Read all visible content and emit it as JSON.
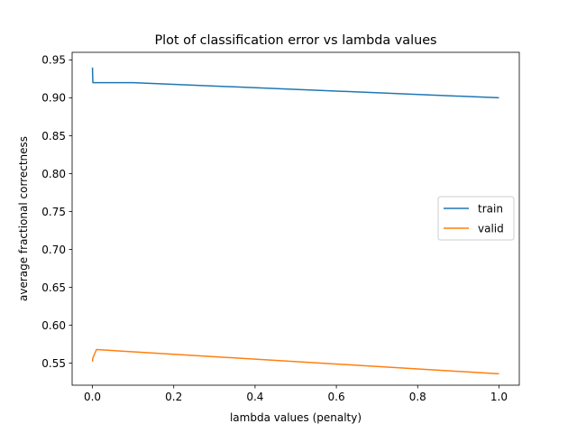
{
  "chart_data": {
    "type": "line",
    "title": "Plot of classification error vs lambda values",
    "xlabel": "lambda values (penalty)",
    "ylabel": "average fractional correctness",
    "xlim": [
      -0.05,
      1.05
    ],
    "ylim": [
      0.521,
      0.96
    ],
    "xticks": [
      0.0,
      0.2,
      0.4,
      0.6,
      0.8,
      1.0
    ],
    "xtick_labels": [
      "0.0",
      "0.2",
      "0.4",
      "0.6",
      "0.8",
      "1.0"
    ],
    "yticks": [
      0.55,
      0.6,
      0.65,
      0.7,
      0.75,
      0.8,
      0.85,
      0.9,
      0.95
    ],
    "ytick_labels": [
      "0.55",
      "0.60",
      "0.65",
      "0.70",
      "0.75",
      "0.80",
      "0.85",
      "0.90",
      "0.95"
    ],
    "grid": false,
    "legend_position": "center-right",
    "series": [
      {
        "name": "train",
        "color": "#1f77b4",
        "x": [
          0.0,
          0.001,
          0.01,
          0.1,
          1.0
        ],
        "y": [
          0.94,
          0.92,
          0.92,
          0.92,
          0.9
        ]
      },
      {
        "name": "valid",
        "color": "#ff7f0e",
        "x": [
          0.0,
          0.001,
          0.01,
          0.1,
          1.0
        ],
        "y": [
          0.552,
          0.557,
          0.568,
          0.565,
          0.536
        ]
      }
    ]
  }
}
